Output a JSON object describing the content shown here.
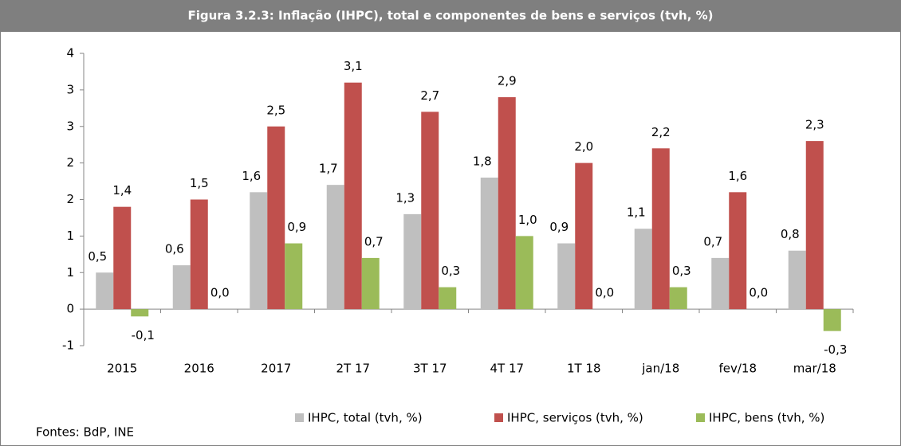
{
  "chart_data": {
    "type": "bar",
    "title": "Figura 3.2.3: Inflação (IHPC), total e componentes de bens e serviços (tvh, %)",
    "categories": [
      "2015",
      "2016",
      "2017",
      "2T 17",
      "3T 17",
      "4T 17",
      "1T 18",
      "jan/18",
      "fev/18",
      "mar/18"
    ],
    "series": [
      {
        "name": "IHPC, total (tvh, %)",
        "color": "#bfbfbf",
        "values": [
          0.5,
          0.6,
          1.6,
          1.7,
          1.3,
          1.8,
          0.9,
          1.1,
          0.7,
          0.8
        ],
        "value_labels": [
          "0,5",
          "0,6",
          "1,6",
          "1,7",
          "1,3",
          "1,8",
          "0,9",
          "1,1",
          "0,7",
          "0,8"
        ]
      },
      {
        "name": "IHPC, serviços (tvh, %)",
        "color": "#c0504d",
        "values": [
          1.4,
          1.5,
          2.5,
          3.1,
          2.7,
          2.9,
          2.0,
          2.2,
          1.6,
          2.3
        ],
        "value_labels": [
          "1,4",
          "1,5",
          "2,5",
          "3,1",
          "2,7",
          "2,9",
          "2,0",
          "2,2",
          "1,6",
          "2,3"
        ]
      },
      {
        "name": "IHPC, bens (tvh, %)",
        "color": "#9bbb59",
        "values": [
          -0.1,
          0.0,
          0.9,
          0.7,
          0.3,
          1.0,
          0.0,
          0.3,
          0.0,
          -0.3
        ],
        "value_labels": [
          "-0,1",
          "0,0",
          "0,9",
          "0,7",
          "0,3",
          "1,0",
          "0,0",
          "0,3",
          "0,0",
          "-0,3"
        ]
      }
    ],
    "ylim": [
      -0.5,
      3.5
    ],
    "yticks": [
      {
        "value": -0.5,
        "label": "-1"
      },
      0,
      {
        "value": 0.5,
        "label": "1"
      },
      {
        "value": 1.0,
        "label": "1"
      },
      {
        "value": 1.5,
        "label": "2"
      },
      {
        "value": 2.0,
        "label": "2"
      },
      {
        "value": 2.5,
        "label": "3"
      },
      {
        "value": 3.0,
        "label": "3"
      },
      {
        "value": 3.5,
        "label": "4"
      }
    ],
    "source": "Fontes:  BdP, INE"
  }
}
